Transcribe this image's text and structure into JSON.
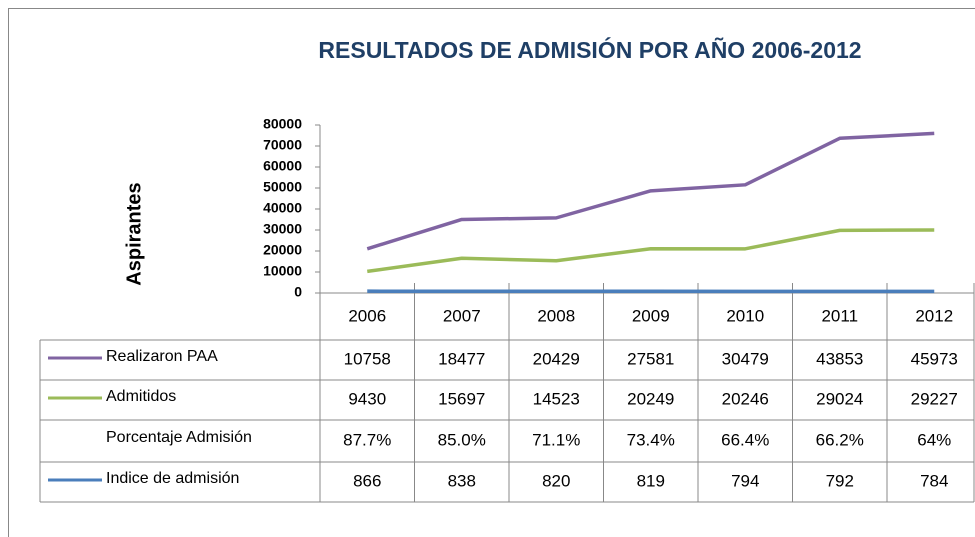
{
  "chart_data": {
    "type": "line",
    "stacked": true,
    "title": "RESULTADOS DE ADMISIÓN POR AÑO 2006-2012",
    "y_label": "Aspirantes",
    "categories": [
      "2006",
      "2007",
      "2008",
      "2009",
      "2010",
      "2011",
      "2012"
    ],
    "ylim": [
      0,
      80000
    ],
    "yticks": [
      0,
      10000,
      20000,
      30000,
      40000,
      50000,
      60000,
      70000,
      80000
    ],
    "series": [
      {
        "name": "Realizaron PAA",
        "color": "#8064a2",
        "values": [
          10758,
          18477,
          20429,
          27581,
          30479,
          43853,
          45973
        ]
      },
      {
        "name": "Admitidos",
        "color": "#9bbb59",
        "values": [
          9430,
          15697,
          14523,
          20249,
          20246,
          29024,
          29227
        ]
      },
      {
        "name": "Porcentaje Admisión",
        "values": [
          87.7,
          85.0,
          71.1,
          73.4,
          66.4,
          66.2,
          64
        ],
        "value_labels": [
          "87.7%",
          "85.0%",
          "71.1%",
          "73.4%",
          "66.4%",
          "66.2%",
          "64%"
        ]
      },
      {
        "name": "Indice de admisión",
        "color": "#4a7ebb",
        "values": [
          866,
          838,
          820,
          819,
          794,
          792,
          784
        ]
      }
    ]
  }
}
